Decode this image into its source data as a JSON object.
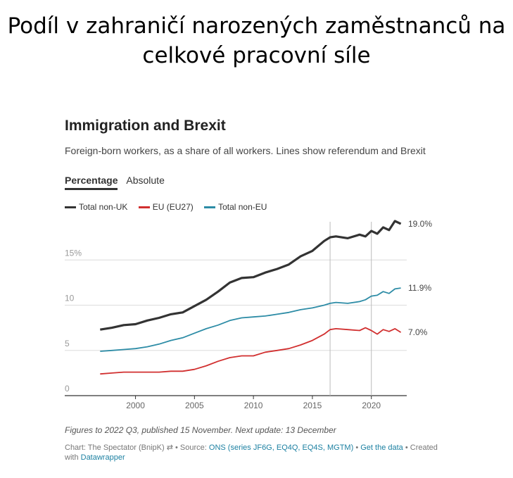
{
  "slide_title": "Podíl v zahraničí narozených zaměstnanců na celkové pracovní síle",
  "chart_data": {
    "type": "line",
    "title": "Immigration and Brexit",
    "subtitle": "Foreign-born workers, as a share of all workers. Lines show referendum and Brexit",
    "tabs": [
      "Percentage",
      "Absolute"
    ],
    "active_tab": "Percentage",
    "xlim": [
      1994,
      2023
    ],
    "ylim": [
      0,
      20
    ],
    "x_ticks": [
      2000,
      2005,
      2010,
      2015,
      2020
    ],
    "y_ticks": [
      0,
      5,
      10,
      15
    ],
    "y_tick_labels": [
      "0",
      "5",
      "10",
      "15%"
    ],
    "reference_lines": [
      2016.5,
      2020.0
    ],
    "series": [
      {
        "name": "Total non-UK",
        "color": "#333333",
        "end_label": "19.0%",
        "points": [
          [
            1997,
            7.3
          ],
          [
            1998,
            7.5
          ],
          [
            1999,
            7.8
          ],
          [
            2000,
            7.9
          ],
          [
            2001,
            8.3
          ],
          [
            2002,
            8.6
          ],
          [
            2003,
            9.0
          ],
          [
            2004,
            9.2
          ],
          [
            2005,
            9.9
          ],
          [
            2006,
            10.6
          ],
          [
            2007,
            11.5
          ],
          [
            2008,
            12.5
          ],
          [
            2009,
            13.0
          ],
          [
            2010,
            13.1
          ],
          [
            2011,
            13.6
          ],
          [
            2012,
            14.0
          ],
          [
            2013,
            14.5
          ],
          [
            2014,
            15.4
          ],
          [
            2015,
            16.0
          ],
          [
            2016,
            17.1
          ],
          [
            2016.5,
            17.5
          ],
          [
            2017,
            17.6
          ],
          [
            2018,
            17.4
          ],
          [
            2019,
            17.8
          ],
          [
            2019.5,
            17.6
          ],
          [
            2020,
            18.2
          ],
          [
            2020.5,
            17.9
          ],
          [
            2021,
            18.6
          ],
          [
            2021.5,
            18.3
          ],
          [
            2022,
            19.3
          ],
          [
            2022.5,
            19.0
          ]
        ]
      },
      {
        "name": "EU (EU27)",
        "color": "#d12f2f",
        "end_label": "7.0%",
        "points": [
          [
            1997,
            2.4
          ],
          [
            1998,
            2.5
          ],
          [
            1999,
            2.6
          ],
          [
            2000,
            2.6
          ],
          [
            2001,
            2.6
          ],
          [
            2002,
            2.6
          ],
          [
            2003,
            2.7
          ],
          [
            2004,
            2.7
          ],
          [
            2005,
            2.9
          ],
          [
            2006,
            3.3
          ],
          [
            2007,
            3.8
          ],
          [
            2008,
            4.2
          ],
          [
            2009,
            4.4
          ],
          [
            2010,
            4.4
          ],
          [
            2011,
            4.8
          ],
          [
            2012,
            5.0
          ],
          [
            2013,
            5.2
          ],
          [
            2014,
            5.6
          ],
          [
            2015,
            6.1
          ],
          [
            2016,
            6.8
          ],
          [
            2016.5,
            7.3
          ],
          [
            2017,
            7.4
          ],
          [
            2018,
            7.3
          ],
          [
            2019,
            7.2
          ],
          [
            2019.5,
            7.5
          ],
          [
            2020,
            7.2
          ],
          [
            2020.5,
            6.8
          ],
          [
            2021,
            7.3
          ],
          [
            2021.5,
            7.1
          ],
          [
            2022,
            7.4
          ],
          [
            2022.5,
            7.0
          ]
        ]
      },
      {
        "name": "Total non-EU",
        "color": "#2d8ca6",
        "end_label": "11.9%",
        "points": [
          [
            1997,
            4.9
          ],
          [
            1998,
            5.0
          ],
          [
            1999,
            5.1
          ],
          [
            2000,
            5.2
          ],
          [
            2001,
            5.4
          ],
          [
            2002,
            5.7
          ],
          [
            2003,
            6.1
          ],
          [
            2004,
            6.4
          ],
          [
            2005,
            6.9
          ],
          [
            2006,
            7.4
          ],
          [
            2007,
            7.8
          ],
          [
            2008,
            8.3
          ],
          [
            2009,
            8.6
          ],
          [
            2010,
            8.7
          ],
          [
            2011,
            8.8
          ],
          [
            2012,
            9.0
          ],
          [
            2013,
            9.2
          ],
          [
            2014,
            9.5
          ],
          [
            2015,
            9.7
          ],
          [
            2016,
            10.0
          ],
          [
            2016.5,
            10.2
          ],
          [
            2017,
            10.3
          ],
          [
            2018,
            10.2
          ],
          [
            2019,
            10.4
          ],
          [
            2019.5,
            10.6
          ],
          [
            2020,
            11.0
          ],
          [
            2020.5,
            11.1
          ],
          [
            2021,
            11.5
          ],
          [
            2021.5,
            11.3
          ],
          [
            2022,
            11.8
          ],
          [
            2022.5,
            11.9
          ]
        ]
      }
    ]
  },
  "notes": "Figures to 2022 Q3, published 15 November. Next update: 13 December",
  "credits": {
    "chart": "Chart: The Spectator (BnipK)",
    "source_label": "• Source:",
    "source_link": "ONS (series JF6G, EQ4Q, EQ4S, MGTM)",
    "sep": "•",
    "get_data": "Get the data",
    "created": "• Created with",
    "datawrapper": "Datawrapper"
  }
}
